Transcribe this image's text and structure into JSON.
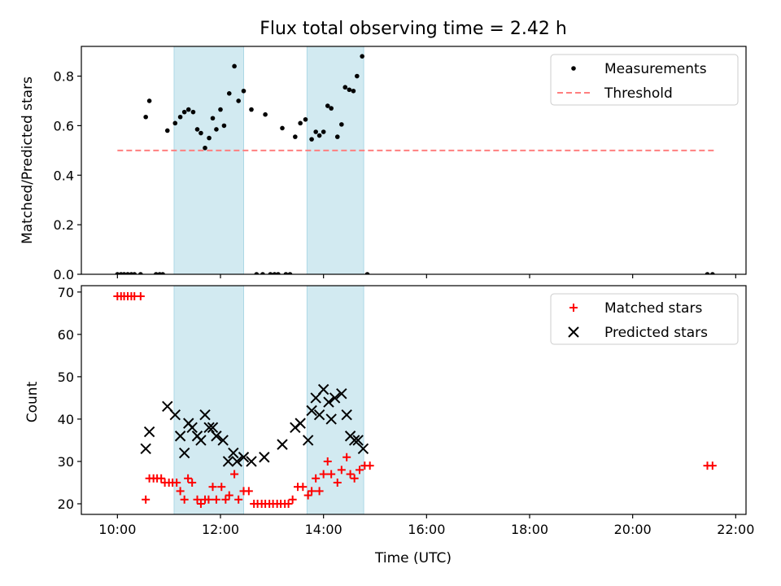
{
  "chart_data": [
    {
      "type": "scatter",
      "title": "Flux total observing time = 2.42 h",
      "xlabel": "",
      "ylabel": "Matched/Predicted stars",
      "xlim": [
        -0.7,
        12.2
      ],
      "ylim": [
        0,
        0.92
      ],
      "x_unit": "hours after 10:00 UTC",
      "yticks": [
        0.0,
        0.2,
        0.4,
        0.6,
        0.8
      ],
      "ytick_labels": [
        "0.0",
        "0.2",
        "0.4",
        "0.6",
        "0.8"
      ],
      "xticks": [
        0,
        2,
        4,
        6,
        8,
        10,
        12
      ],
      "shaded_spans": [
        [
          1.1,
          2.45
        ],
        [
          3.68,
          4.78
        ]
      ],
      "shade_color": "#add8e6",
      "threshold": {
        "name": "Threshold",
        "value": 0.5,
        "x_range": [
          0,
          11.6
        ],
        "color": "#ff7f7f"
      },
      "series": [
        {
          "name": "Measurements",
          "color": "#000000",
          "points": [
            [
              0.0,
              0
            ],
            [
              0.07,
              0
            ],
            [
              0.13,
              0
            ],
            [
              0.2,
              0
            ],
            [
              0.27,
              0
            ],
            [
              0.33,
              0
            ],
            [
              0.45,
              0
            ],
            [
              0.55,
              0.635
            ],
            [
              0.62,
              0.7
            ],
            [
              0.75,
              0
            ],
            [
              0.82,
              0
            ],
            [
              0.88,
              0
            ],
            [
              0.97,
              0.58
            ],
            [
              1.12,
              0.61
            ],
            [
              1.22,
              0.635
            ],
            [
              1.3,
              0.655
            ],
            [
              1.38,
              0.665
            ],
            [
              1.47,
              0.655
            ],
            [
              1.55,
              0.585
            ],
            [
              1.62,
              0.57
            ],
            [
              1.7,
              0.51
            ],
            [
              1.78,
              0.55
            ],
            [
              1.85,
              0.63
            ],
            [
              1.92,
              0.585
            ],
            [
              2.0,
              0.665
            ],
            [
              2.07,
              0.6
            ],
            [
              2.17,
              0.73
            ],
            [
              2.27,
              0.84
            ],
            [
              2.35,
              0.7
            ],
            [
              2.45,
              0.74
            ],
            [
              2.6,
              0.665
            ],
            [
              2.7,
              0
            ],
            [
              2.82,
              0
            ],
            [
              2.87,
              0.645
            ],
            [
              2.97,
              0
            ],
            [
              3.05,
              0
            ],
            [
              3.12,
              0
            ],
            [
              3.2,
              0.59
            ],
            [
              3.27,
              0
            ],
            [
              3.35,
              0
            ],
            [
              3.45,
              0.555
            ],
            [
              3.55,
              0.61
            ],
            [
              3.65,
              0.625
            ],
            [
              3.77,
              0.545
            ],
            [
              3.85,
              0.575
            ],
            [
              3.92,
              0.56
            ],
            [
              4.0,
              0.575
            ],
            [
              4.08,
              0.68
            ],
            [
              4.15,
              0.67
            ],
            [
              4.27,
              0.555
            ],
            [
              4.35,
              0.605
            ],
            [
              4.42,
              0.755
            ],
            [
              4.5,
              0.745
            ],
            [
              4.58,
              0.74
            ],
            [
              4.65,
              0.8
            ],
            [
              4.75,
              0.88
            ],
            [
              4.85,
              0
            ],
            [
              11.45,
              0
            ],
            [
              11.55,
              0
            ]
          ]
        }
      ],
      "legend": {
        "position": "upper right",
        "entries": [
          "Measurements",
          "Threshold"
        ]
      }
    },
    {
      "type": "scatter",
      "title": "",
      "xlabel": "Time (UTC)",
      "ylabel": "Count",
      "xlim": [
        -0.7,
        12.2
      ],
      "ylim": [
        17.5,
        71.5
      ],
      "x_unit": "hours after 10:00 UTC",
      "yticks": [
        20,
        30,
        40,
        50,
        60,
        70
      ],
      "ytick_labels": [
        "20",
        "30",
        "40",
        "50",
        "60",
        "70"
      ],
      "xticks": [
        0,
        2,
        4,
        6,
        8,
        10,
        12
      ],
      "xtick_labels": [
        "10:00",
        "12:00",
        "14:00",
        "16:00",
        "18:00",
        "20:00",
        "22:00"
      ],
      "shaded_spans": [
        [
          1.1,
          2.45
        ],
        [
          3.68,
          4.78
        ]
      ],
      "shade_color": "#add8e6",
      "series": [
        {
          "name": "Matched stars",
          "marker": "plus",
          "color": "#ff0000",
          "points": [
            [
              0.0,
              69
            ],
            [
              0.07,
              69
            ],
            [
              0.13,
              69
            ],
            [
              0.2,
              69
            ],
            [
              0.27,
              69
            ],
            [
              0.33,
              69
            ],
            [
              0.45,
              69
            ],
            [
              0.55,
              21
            ],
            [
              0.62,
              26
            ],
            [
              0.7,
              26
            ],
            [
              0.77,
              26
            ],
            [
              0.85,
              26
            ],
            [
              0.92,
              25
            ],
            [
              1.0,
              25
            ],
            [
              1.07,
              25
            ],
            [
              1.15,
              25
            ],
            [
              1.22,
              23
            ],
            [
              1.3,
              21
            ],
            [
              1.37,
              26
            ],
            [
              1.45,
              25
            ],
            [
              1.55,
              21
            ],
            [
              1.62,
              20
            ],
            [
              1.7,
              21
            ],
            [
              1.77,
              21
            ],
            [
              1.85,
              24
            ],
            [
              1.92,
              21
            ],
            [
              2.02,
              24
            ],
            [
              2.1,
              21
            ],
            [
              2.17,
              22
            ],
            [
              2.27,
              27
            ],
            [
              2.35,
              21
            ],
            [
              2.45,
              23
            ],
            [
              2.55,
              23
            ],
            [
              2.65,
              20
            ],
            [
              2.72,
              20
            ],
            [
              2.8,
              20
            ],
            [
              2.87,
              20
            ],
            [
              2.95,
              20
            ],
            [
              3.02,
              20
            ],
            [
              3.1,
              20
            ],
            [
              3.17,
              20
            ],
            [
              3.25,
              20
            ],
            [
              3.32,
              20
            ],
            [
              3.4,
              21
            ],
            [
              3.5,
              24
            ],
            [
              3.6,
              24
            ],
            [
              3.7,
              22
            ],
            [
              3.77,
              23
            ],
            [
              3.85,
              26
            ],
            [
              3.92,
              23
            ],
            [
              4.0,
              27
            ],
            [
              4.08,
              30
            ],
            [
              4.15,
              27
            ],
            [
              4.27,
              25
            ],
            [
              4.35,
              28
            ],
            [
              4.45,
              31
            ],
            [
              4.52,
              27
            ],
            [
              4.6,
              26
            ],
            [
              4.7,
              28
            ],
            [
              4.8,
              29
            ],
            [
              4.9,
              29
            ],
            [
              11.45,
              29
            ],
            [
              11.55,
              29
            ]
          ]
        },
        {
          "name": "Predicted stars",
          "marker": "x",
          "color": "#000000",
          "points": [
            [
              0.55,
              33
            ],
            [
              0.62,
              37
            ],
            [
              0.97,
              43
            ],
            [
              1.12,
              41
            ],
            [
              1.22,
              36
            ],
            [
              1.3,
              32
            ],
            [
              1.38,
              39
            ],
            [
              1.45,
              38
            ],
            [
              1.55,
              36
            ],
            [
              1.62,
              35
            ],
            [
              1.7,
              41
            ],
            [
              1.78,
              38
            ],
            [
              1.85,
              38
            ],
            [
              1.92,
              36
            ],
            [
              2.05,
              35
            ],
            [
              2.15,
              30
            ],
            [
              2.25,
              32
            ],
            [
              2.32,
              30
            ],
            [
              2.45,
              31
            ],
            [
              2.6,
              30
            ],
            [
              2.85,
              31
            ],
            [
              3.2,
              34
            ],
            [
              3.45,
              38
            ],
            [
              3.55,
              39
            ],
            [
              3.7,
              35
            ],
            [
              3.77,
              42
            ],
            [
              3.85,
              45
            ],
            [
              3.92,
              41
            ],
            [
              4.0,
              47
            ],
            [
              4.1,
              44
            ],
            [
              4.15,
              40
            ],
            [
              4.22,
              45
            ],
            [
              4.35,
              46
            ],
            [
              4.45,
              41
            ],
            [
              4.52,
              36
            ],
            [
              4.6,
              35
            ],
            [
              4.67,
              35
            ],
            [
              4.77,
              33
            ]
          ]
        }
      ],
      "legend": {
        "position": "upper right",
        "entries": [
          "Matched stars",
          "Predicted stars"
        ]
      }
    }
  ]
}
